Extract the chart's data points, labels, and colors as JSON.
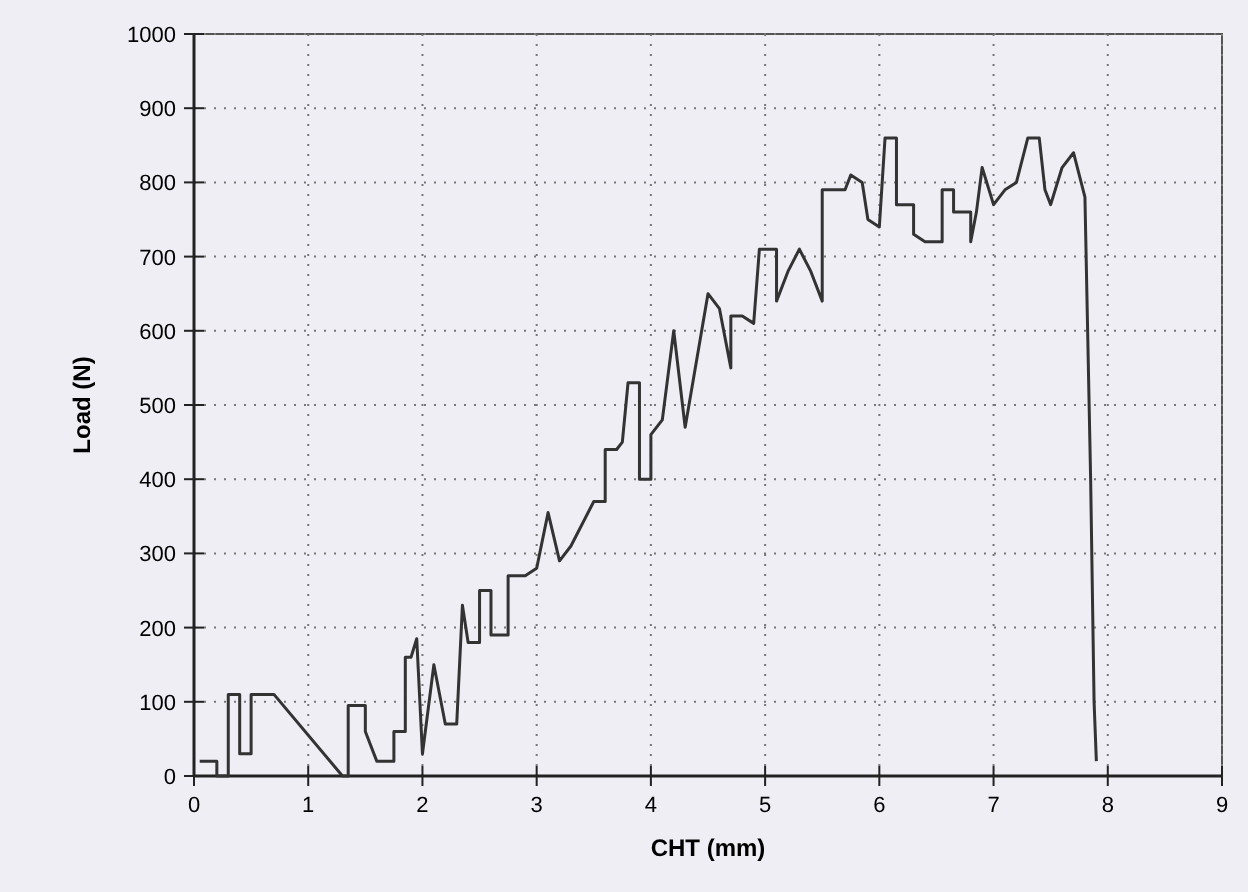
{
  "chart_data": {
    "type": "line",
    "xlabel": "CHT (mm)",
    "ylabel": "Load (N)",
    "xlim": [
      0,
      9
    ],
    "ylim": [
      0,
      1000
    ],
    "xticks": [
      0,
      1,
      2,
      3,
      4,
      5,
      6,
      7,
      8,
      9
    ],
    "yticks": [
      0,
      100,
      200,
      300,
      400,
      500,
      600,
      700,
      800,
      900,
      1000
    ],
    "grid": true,
    "line_style": "solid",
    "marker": "none",
    "series": [
      {
        "color": "#333333",
        "x": [
          0.05,
          0.2,
          0.2,
          0.3,
          0.3,
          0.4,
          0.4,
          0.5,
          0.5,
          0.7,
          1.3,
          1.35,
          1.35,
          1.5,
          1.5,
          1.6,
          1.75,
          1.75,
          1.85,
          1.85,
          1.9,
          1.95,
          2.0,
          2.1,
          2.2,
          2.3,
          2.35,
          2.4,
          2.5,
          2.5,
          2.6,
          2.6,
          2.75,
          2.75,
          2.9,
          3.0,
          3.1,
          3.2,
          3.3,
          3.5,
          3.6,
          3.6,
          3.7,
          3.75,
          3.8,
          3.9,
          3.9,
          4.0,
          4.0,
          4.1,
          4.2,
          4.3,
          4.4,
          4.5,
          4.6,
          4.7,
          4.7,
          4.8,
          4.9,
          4.95,
          5.1,
          5.1,
          5.2,
          5.3,
          5.4,
          5.5,
          5.5,
          5.7,
          5.75,
          5.85,
          5.9,
          6.0,
          6.05,
          6.15,
          6.15,
          6.3,
          6.3,
          6.4,
          6.55,
          6.55,
          6.65,
          6.65,
          6.8,
          6.8,
          6.85,
          6.9,
          7.0,
          7.1,
          7.2,
          7.3,
          7.4,
          7.45,
          7.5,
          7.6,
          7.7,
          7.8,
          7.85,
          7.88,
          7.9
        ],
        "values": [
          20,
          20,
          0,
          0,
          110,
          110,
          30,
          30,
          110,
          110,
          0,
          0,
          95,
          95,
          60,
          20,
          20,
          60,
          60,
          160,
          160,
          185,
          30,
          150,
          70,
          70,
          230,
          180,
          180,
          250,
          250,
          190,
          190,
          270,
          270,
          280,
          355,
          290,
          310,
          370,
          370,
          440,
          440,
          450,
          530,
          530,
          400,
          400,
          460,
          480,
          600,
          470,
          560,
          650,
          630,
          550,
          620,
          620,
          610,
          710,
          710,
          640,
          680,
          710,
          680,
          640,
          790,
          790,
          810,
          800,
          750,
          740,
          860,
          860,
          770,
          770,
          730,
          720,
          720,
          790,
          790,
          760,
          760,
          720,
          760,
          820,
          770,
          790,
          800,
          860,
          860,
          790,
          770,
          820,
          840,
          780,
          400,
          100,
          20
        ]
      }
    ]
  }
}
